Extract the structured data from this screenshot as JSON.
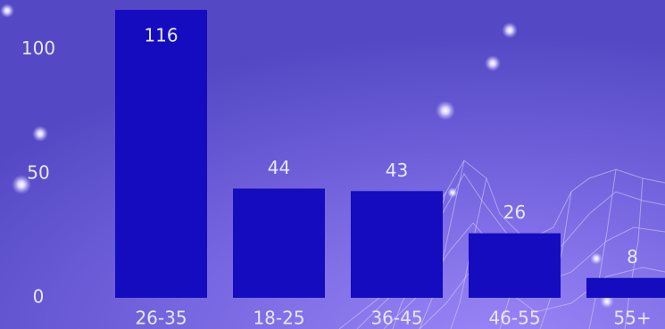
{
  "chart_data": {
    "type": "bar",
    "categories": [
      "26-35",
      "18-25",
      "36-45",
      "46-55",
      "55+"
    ],
    "values": [
      116,
      44,
      43,
      26,
      8
    ],
    "color": "#140cbe",
    "ylim": [
      0,
      120
    ],
    "yticks": [
      0,
      50,
      100
    ],
    "grid": false
  }
}
